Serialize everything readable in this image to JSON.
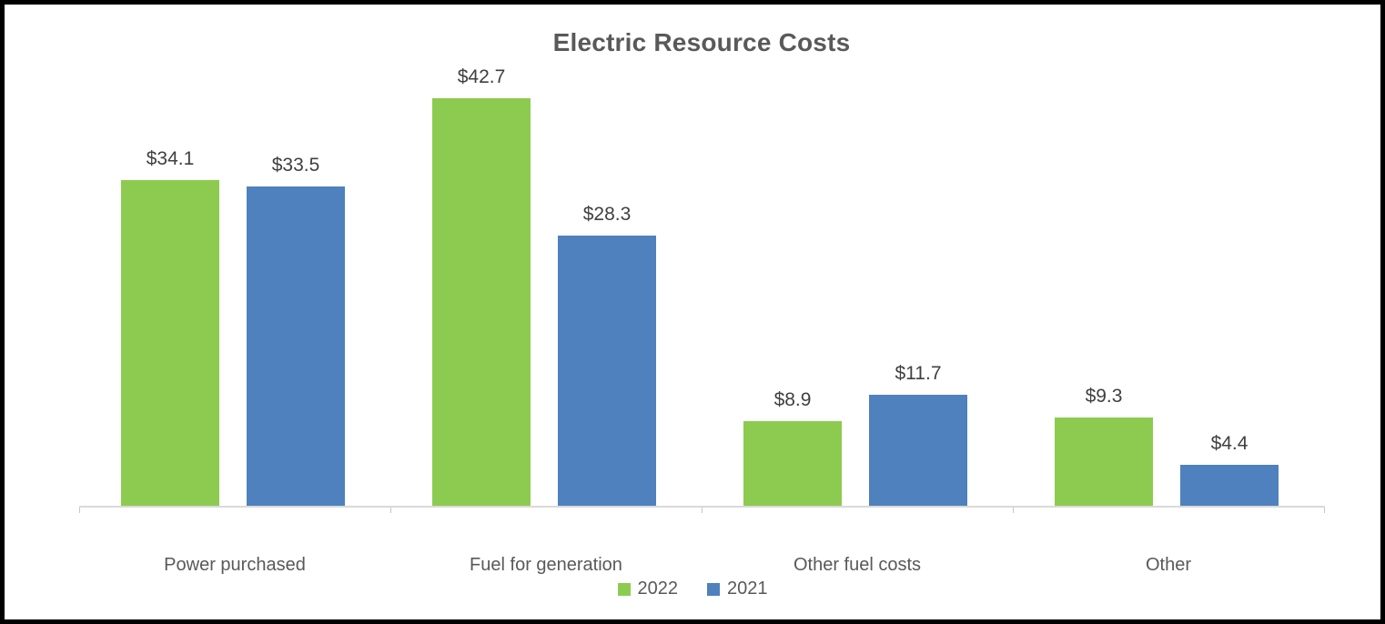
{
  "window": {
    "background": "#FFFFFF",
    "frame_border_color": "#000000"
  },
  "chart_data": {
    "type": "bar",
    "title": "Electric Resource Costs",
    "categories": [
      "Power purchased",
      "Fuel for generation",
      "Other fuel costs",
      "Other"
    ],
    "series": [
      {
        "name": "2022",
        "color": "#8DCB50",
        "values": [
          34.1,
          42.7,
          8.9,
          9.3
        ],
        "labels": [
          "$34.1",
          "$42.7",
          "$8.9",
          "$9.3"
        ]
      },
      {
        "name": "2021",
        "color": "#4E81BD",
        "values": [
          33.5,
          28.3,
          11.7,
          4.4
        ],
        "labels": [
          "$33.5",
          "$28.3",
          "$11.7",
          "$4.4"
        ]
      }
    ],
    "value_prefix": "$",
    "xlabel": "",
    "ylabel": "",
    "ylim": [
      0,
      45
    ],
    "grid": false,
    "y_axis_visible": false,
    "data_labels": true,
    "legend_position": "bottom",
    "axis_line_color": "#D9D9D9",
    "title_color": "#595959",
    "category_label_color": "#595959",
    "data_label_color": "#404040"
  }
}
